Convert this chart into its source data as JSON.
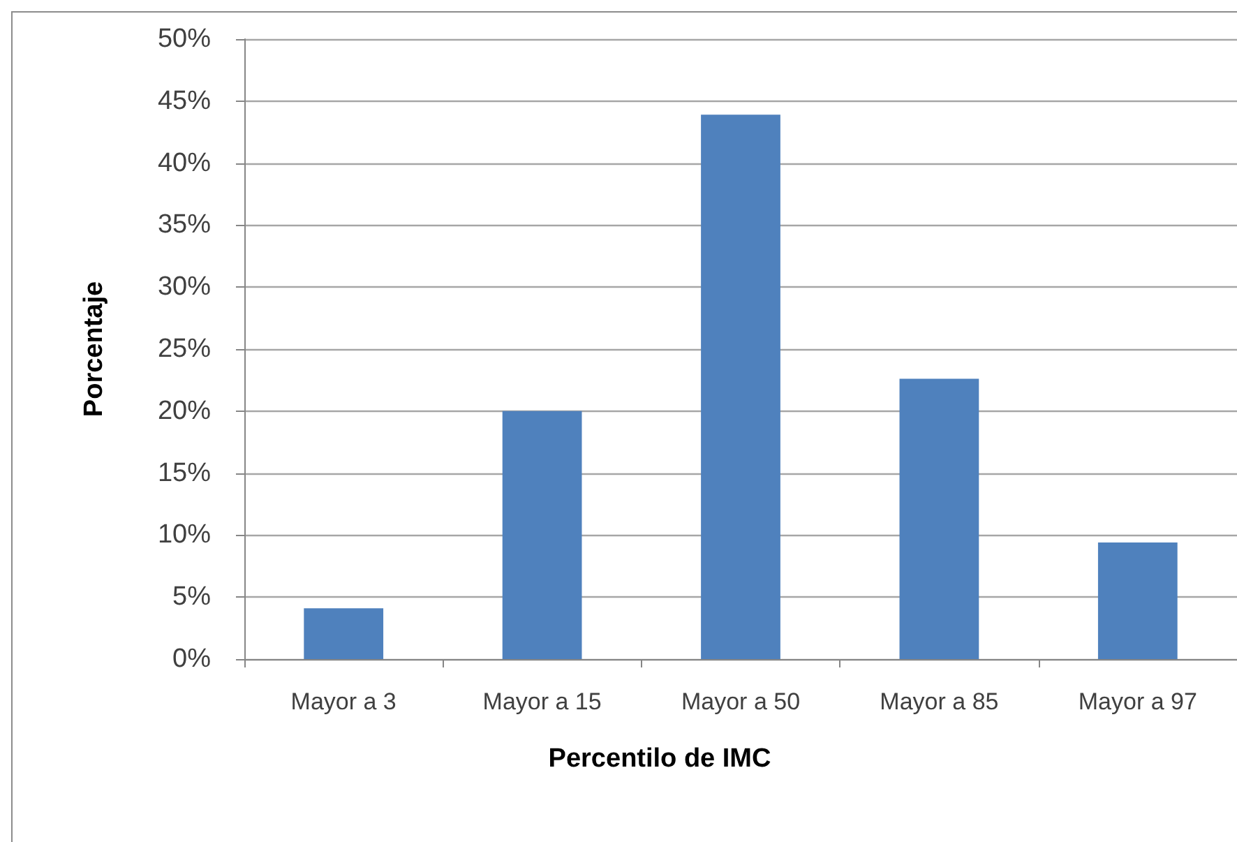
{
  "chart_data": {
    "type": "bar",
    "xlabel": "Percentilo de IMC",
    "ylabel": "Porcentaje",
    "categories": [
      "Mayor a 3",
      "Mayor a 15",
      "Mayor a 50",
      "Mayor a 85",
      "Mayor a 97"
    ],
    "values": [
      4.1,
      20,
      43.9,
      22.6,
      9.4
    ],
    "color": "#4f81bd",
    "ylim": [
      0,
      50
    ],
    "yticks": [
      {
        "value": 0,
        "label": "0%"
      },
      {
        "value": 5,
        "label": "5%"
      },
      {
        "value": 10,
        "label": "10%"
      },
      {
        "value": 15,
        "label": "15%"
      },
      {
        "value": 20,
        "label": "20%"
      },
      {
        "value": 25,
        "label": "25%"
      },
      {
        "value": 30,
        "label": "30%"
      },
      {
        "value": 35,
        "label": "35%"
      },
      {
        "value": 40,
        "label": "40%"
      },
      {
        "value": 45,
        "label": "45%"
      },
      {
        "value": 50,
        "label": "50%"
      }
    ],
    "grid": true
  }
}
